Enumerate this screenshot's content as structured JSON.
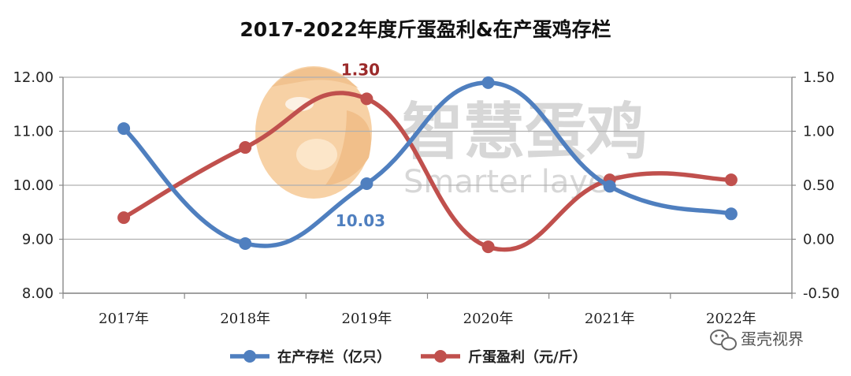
{
  "chart_data": {
    "type": "line",
    "title": "2017-2022年度斤蛋盈利&在产蛋鸡存栏",
    "categories": [
      "2017年",
      "2018年",
      "2019年",
      "2020年",
      "2021年",
      "2022年"
    ],
    "series": [
      {
        "name": "在产存栏（亿只）",
        "axis": "left",
        "color": "#4f7fbf",
        "values": [
          11.05,
          8.92,
          10.03,
          11.9,
          9.98,
          9.47
        ]
      },
      {
        "name": "斤蛋盈利（元/斤）",
        "axis": "right",
        "color": "#c0504d",
        "values": [
          0.2,
          0.85,
          1.3,
          -0.07,
          0.55,
          0.55
        ]
      }
    ],
    "y_left": {
      "range": [
        8.0,
        12.0
      ],
      "ticks": [
        "8.00",
        "9.00",
        "10.00",
        "11.00",
        "12.00"
      ]
    },
    "y_right": {
      "range": [
        -0.5,
        1.5
      ],
      "ticks": [
        "-0.50",
        "0.00",
        "0.50",
        "1.00",
        "1.50"
      ]
    },
    "annotations": [
      {
        "text": "1.30",
        "series": 1,
        "index": 2,
        "color": "#9b2a2a"
      },
      {
        "text": "10.03",
        "series": 0,
        "index": 2,
        "color": "#4f7fbf"
      }
    ],
    "grid": true,
    "legend_position": "bottom"
  },
  "watermark": {
    "text_cn": "智慧蛋鸡",
    "text_en": "Smarter layer"
  },
  "source_tag": {
    "text": "蛋壳视界"
  },
  "icons": {
    "watermark_logo": "chicken-logo-icon",
    "source_logo": "wechat-icon"
  }
}
